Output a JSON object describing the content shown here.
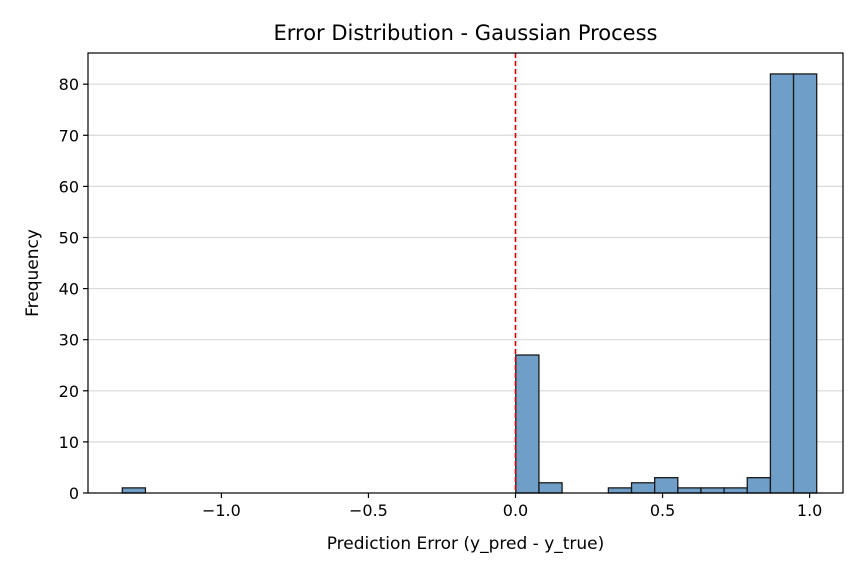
{
  "chart_data": {
    "type": "bar",
    "title": "Error Distribution - Gaussian Process",
    "xlabel": "Prediction Error (y_pred - y_true)",
    "ylabel": "Frequency",
    "xlim": [
      -1.4535,
      1.1135
    ],
    "ylim": [
      0,
      86.1
    ],
    "x_ticks": [
      {
        "value": -1.0,
        "label": "−1.0"
      },
      {
        "value": -0.5,
        "label": "−0.5"
      },
      {
        "value": 0.0,
        "label": "0.0"
      },
      {
        "value": 0.5,
        "label": "0.5"
      },
      {
        "value": 1.0,
        "label": "1.0"
      }
    ],
    "y_ticks": [
      {
        "value": 0,
        "label": "0"
      },
      {
        "value": 10,
        "label": "10"
      },
      {
        "value": 20,
        "label": "20"
      },
      {
        "value": 30,
        "label": "30"
      },
      {
        "value": 40,
        "label": "40"
      },
      {
        "value": 50,
        "label": "50"
      },
      {
        "value": 60,
        "label": "60"
      },
      {
        "value": 70,
        "label": "70"
      },
      {
        "value": 80,
        "label": "80"
      }
    ],
    "grid": "y",
    "bins": {
      "start": -1.3369,
      "width": 0.0787,
      "counts": [
        1,
        0,
        0,
        0,
        0,
        0,
        0,
        0,
        0,
        0,
        0,
        0,
        0,
        0,
        0,
        0,
        0,
        27,
        2,
        0,
        0,
        1,
        2,
        3,
        1,
        1,
        1,
        3,
        82,
        82
      ]
    },
    "reference_line": {
      "x": 0.0,
      "color": "#dd0000",
      "style": "dashed"
    },
    "colors": {
      "bar_fill": "#6f9fc8",
      "bar_edge": "#1a1a1a",
      "grid": "#d9d9d9"
    }
  }
}
